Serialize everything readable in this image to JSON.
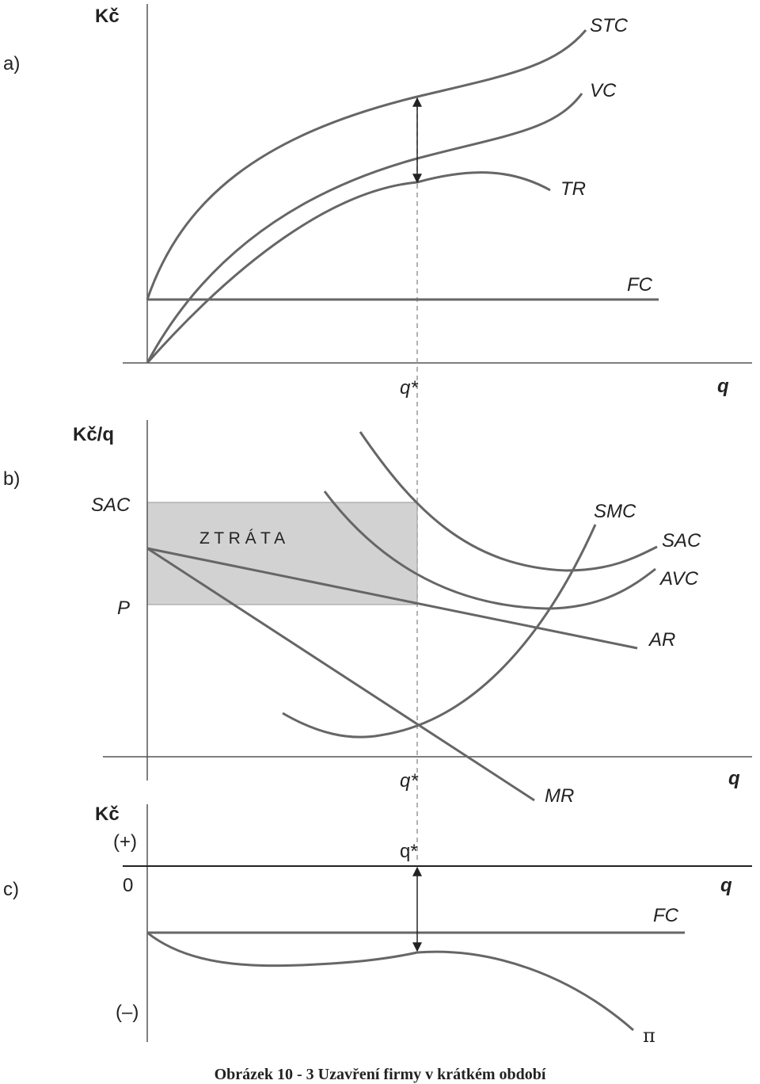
{
  "panel_a": {
    "label": "a)",
    "y_axis": "Kč",
    "x_axis": "q",
    "q_star": "q*",
    "curves": [
      "STC",
      "VC",
      "TR",
      "FC"
    ]
  },
  "panel_b": {
    "label": "b)",
    "y_axis": "Kč/q",
    "x_axis": "q",
    "q_star": "q*",
    "y_marks": [
      "SAC",
      "P"
    ],
    "area": "Z T R Á T A",
    "curves": [
      "SMC",
      "SAC",
      "AVC",
      "AR",
      "MR"
    ]
  },
  "panel_c": {
    "label": "c)",
    "y_axis": "Kč",
    "x_axis": "q",
    "q_star": "q*",
    "y_marks": [
      "(+)",
      "0",
      "(–)"
    ],
    "curves": [
      "FC",
      "π"
    ]
  },
  "caption": "Obrázek 10 - 3 Uzavření firmy v krátkém období"
}
